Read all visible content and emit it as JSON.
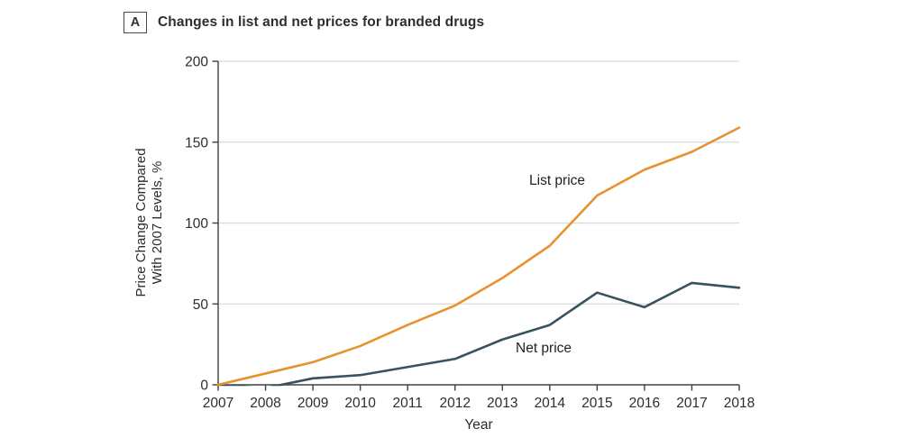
{
  "panel": {
    "label": "A",
    "title": "Changes in list and net prices for branded drugs"
  },
  "chart_data": {
    "type": "line",
    "x": [
      2007,
      2008,
      2009,
      2010,
      2011,
      2012,
      2013,
      2014,
      2015,
      2016,
      2017,
      2018
    ],
    "series": [
      {
        "name": "List price",
        "color": "#E8922F",
        "values": [
          0,
          7,
          14,
          24,
          37,
          49,
          66,
          86,
          117,
          133,
          144,
          159
        ]
      },
      {
        "name": "Net price",
        "color": "#37535F",
        "values": [
          0,
          -2,
          4,
          6,
          11,
          16,
          28,
          37,
          57,
          48,
          63,
          60
        ]
      }
    ],
    "xlabel": "Year",
    "ylabel": [
      "Price Change Compared",
      "With 2007 Levels, %"
    ],
    "ylim": [
      0,
      200
    ],
    "yticks": [
      0,
      50,
      100,
      150,
      200
    ],
    "grid": "horizontal",
    "legend_position": "inline-labels",
    "grid_color": "#DADADA",
    "axis_color": "#404040",
    "text_color": "#2D2D2D"
  }
}
